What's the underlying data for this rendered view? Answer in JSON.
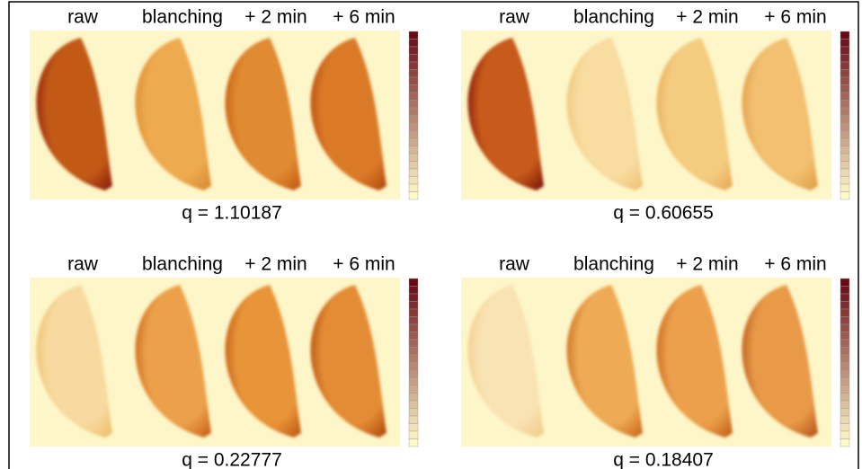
{
  "panels": [
    {
      "labels": [
        "raw",
        "blanching",
        "+ 2 min",
        "+ 6 min"
      ],
      "q": "q = 1.10187"
    },
    {
      "labels": [
        "raw",
        "blanching",
        "+ 2 min",
        "+ 6 min"
      ],
      "q": "q = 0.60655"
    },
    {
      "labels": [
        "raw",
        "blanching",
        "+ 2 min",
        "+ 6 min"
      ],
      "q": "q = 0.22777"
    },
    {
      "labels": [
        "raw",
        "blanching",
        "+ 2 min",
        "+ 6 min"
      ],
      "q": "q = 0.18407"
    }
  ]
}
